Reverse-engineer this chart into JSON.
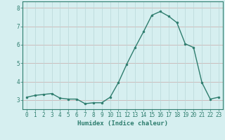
{
  "x": [
    0,
    1,
    2,
    3,
    4,
    5,
    6,
    7,
    8,
    9,
    10,
    11,
    12,
    13,
    14,
    15,
    16,
    17,
    18,
    19,
    20,
    21,
    22,
    23
  ],
  "y": [
    3.15,
    3.25,
    3.3,
    3.35,
    3.1,
    3.05,
    3.05,
    2.8,
    2.85,
    2.85,
    3.15,
    3.95,
    4.95,
    5.85,
    6.7,
    7.6,
    7.8,
    7.55,
    7.2,
    6.05,
    5.85,
    3.95,
    3.05,
    3.15
  ],
  "line_color": "#2e7d6e",
  "marker": "o",
  "marker_size": 2.0,
  "line_width": 1.0,
  "bg_color": "#d6eff0",
  "grid_color_h": "#c8a8a8",
  "grid_color_v": "#b8d8d8",
  "axis_color": "#2e7d6e",
  "tick_color": "#2e7d6e",
  "xlabel": "Humidex (Indice chaleur)",
  "xlabel_fontsize": 6.5,
  "xlabel_color": "#2e7d6e",
  "ylim": [
    2.5,
    8.35
  ],
  "xlim": [
    -0.5,
    23.5
  ],
  "yticks": [
    3,
    4,
    5,
    6,
    7,
    8
  ],
  "xticks": [
    0,
    1,
    2,
    3,
    4,
    5,
    6,
    7,
    8,
    9,
    10,
    11,
    12,
    13,
    14,
    15,
    16,
    17,
    18,
    19,
    20,
    21,
    22,
    23
  ],
  "tick_fontsize": 5.5
}
